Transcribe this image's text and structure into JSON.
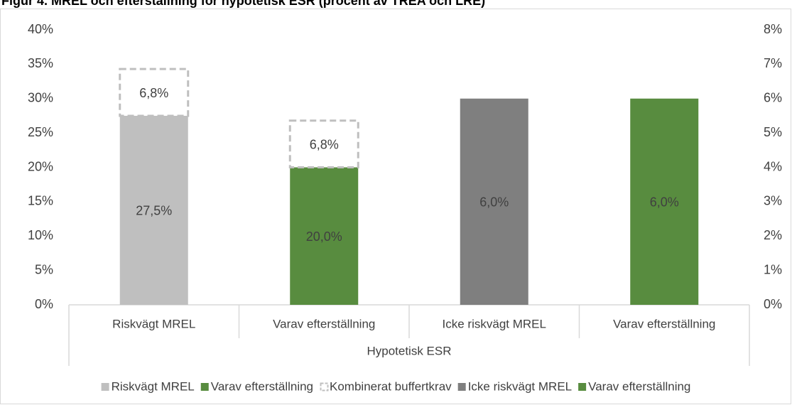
{
  "chart_data": {
    "type": "bar",
    "title": "Figur 4. MREL och efterställning för hypotetisk ESR (procent av TREA och LRE)",
    "categories": [
      "Riskvägt MREL",
      "Varav efterställning",
      "Icke riskvägt MREL",
      "Varav efterställning"
    ],
    "group": "Hypotetisk ESR",
    "series": [
      {
        "name": "Riskvägt MREL",
        "color": "#bfbfbf",
        "values": [
          27.5,
          null,
          null,
          null
        ],
        "value_labels": [
          "27,5%",
          null,
          null,
          null
        ]
      },
      {
        "name": "Varav efterställning",
        "color": "#588c3f",
        "values": [
          null,
          20.0,
          null,
          null
        ],
        "value_labels": [
          null,
          "20,0%",
          null,
          null
        ]
      },
      {
        "name": "Kombinerat buffertkrav",
        "color": "#bfbfbf",
        "dashed": true,
        "values": [
          6.8,
          6.8,
          null,
          null
        ],
        "value_labels": [
          "6,8%",
          "6,8%",
          null,
          null
        ]
      },
      {
        "name": "Icke riskvägt MREL",
        "color": "#7f7f7f",
        "axis": "y2",
        "values": [
          null,
          null,
          6.0,
          null
        ],
        "value_labels": [
          null,
          null,
          "6,0%",
          null
        ]
      },
      {
        "name": "Varav efterställning",
        "color": "#588c3f",
        "axis": "y2",
        "values": [
          null,
          null,
          null,
          6.0
        ],
        "value_labels": [
          null,
          null,
          null,
          "6,0%"
        ]
      }
    ],
    "ylim": [
      0,
      40
    ],
    "yticks": [
      {
        "value": 0,
        "label": "0%"
      },
      {
        "value": 5,
        "label": "5%"
      },
      {
        "value": 10,
        "label": "10%"
      },
      {
        "value": 15,
        "label": "15%"
      },
      {
        "value": 20,
        "label": "20%"
      },
      {
        "value": 25,
        "label": "25%"
      },
      {
        "value": 30,
        "label": "30%"
      },
      {
        "value": 35,
        "label": "35%"
      },
      {
        "value": 40,
        "label": "40%"
      }
    ],
    "y2lim": [
      0,
      8
    ],
    "y2ticks": [
      {
        "value": 0,
        "label": "0%"
      },
      {
        "value": 1,
        "label": "1%"
      },
      {
        "value": 2,
        "label": "2%"
      },
      {
        "value": 3,
        "label": "3%"
      },
      {
        "value": 4,
        "label": "4%"
      },
      {
        "value": 5,
        "label": "5%"
      },
      {
        "value": 6,
        "label": "6%"
      },
      {
        "value": 7,
        "label": "7%"
      },
      {
        "value": 8,
        "label": "8%"
      }
    ],
    "legend": "bottom"
  }
}
